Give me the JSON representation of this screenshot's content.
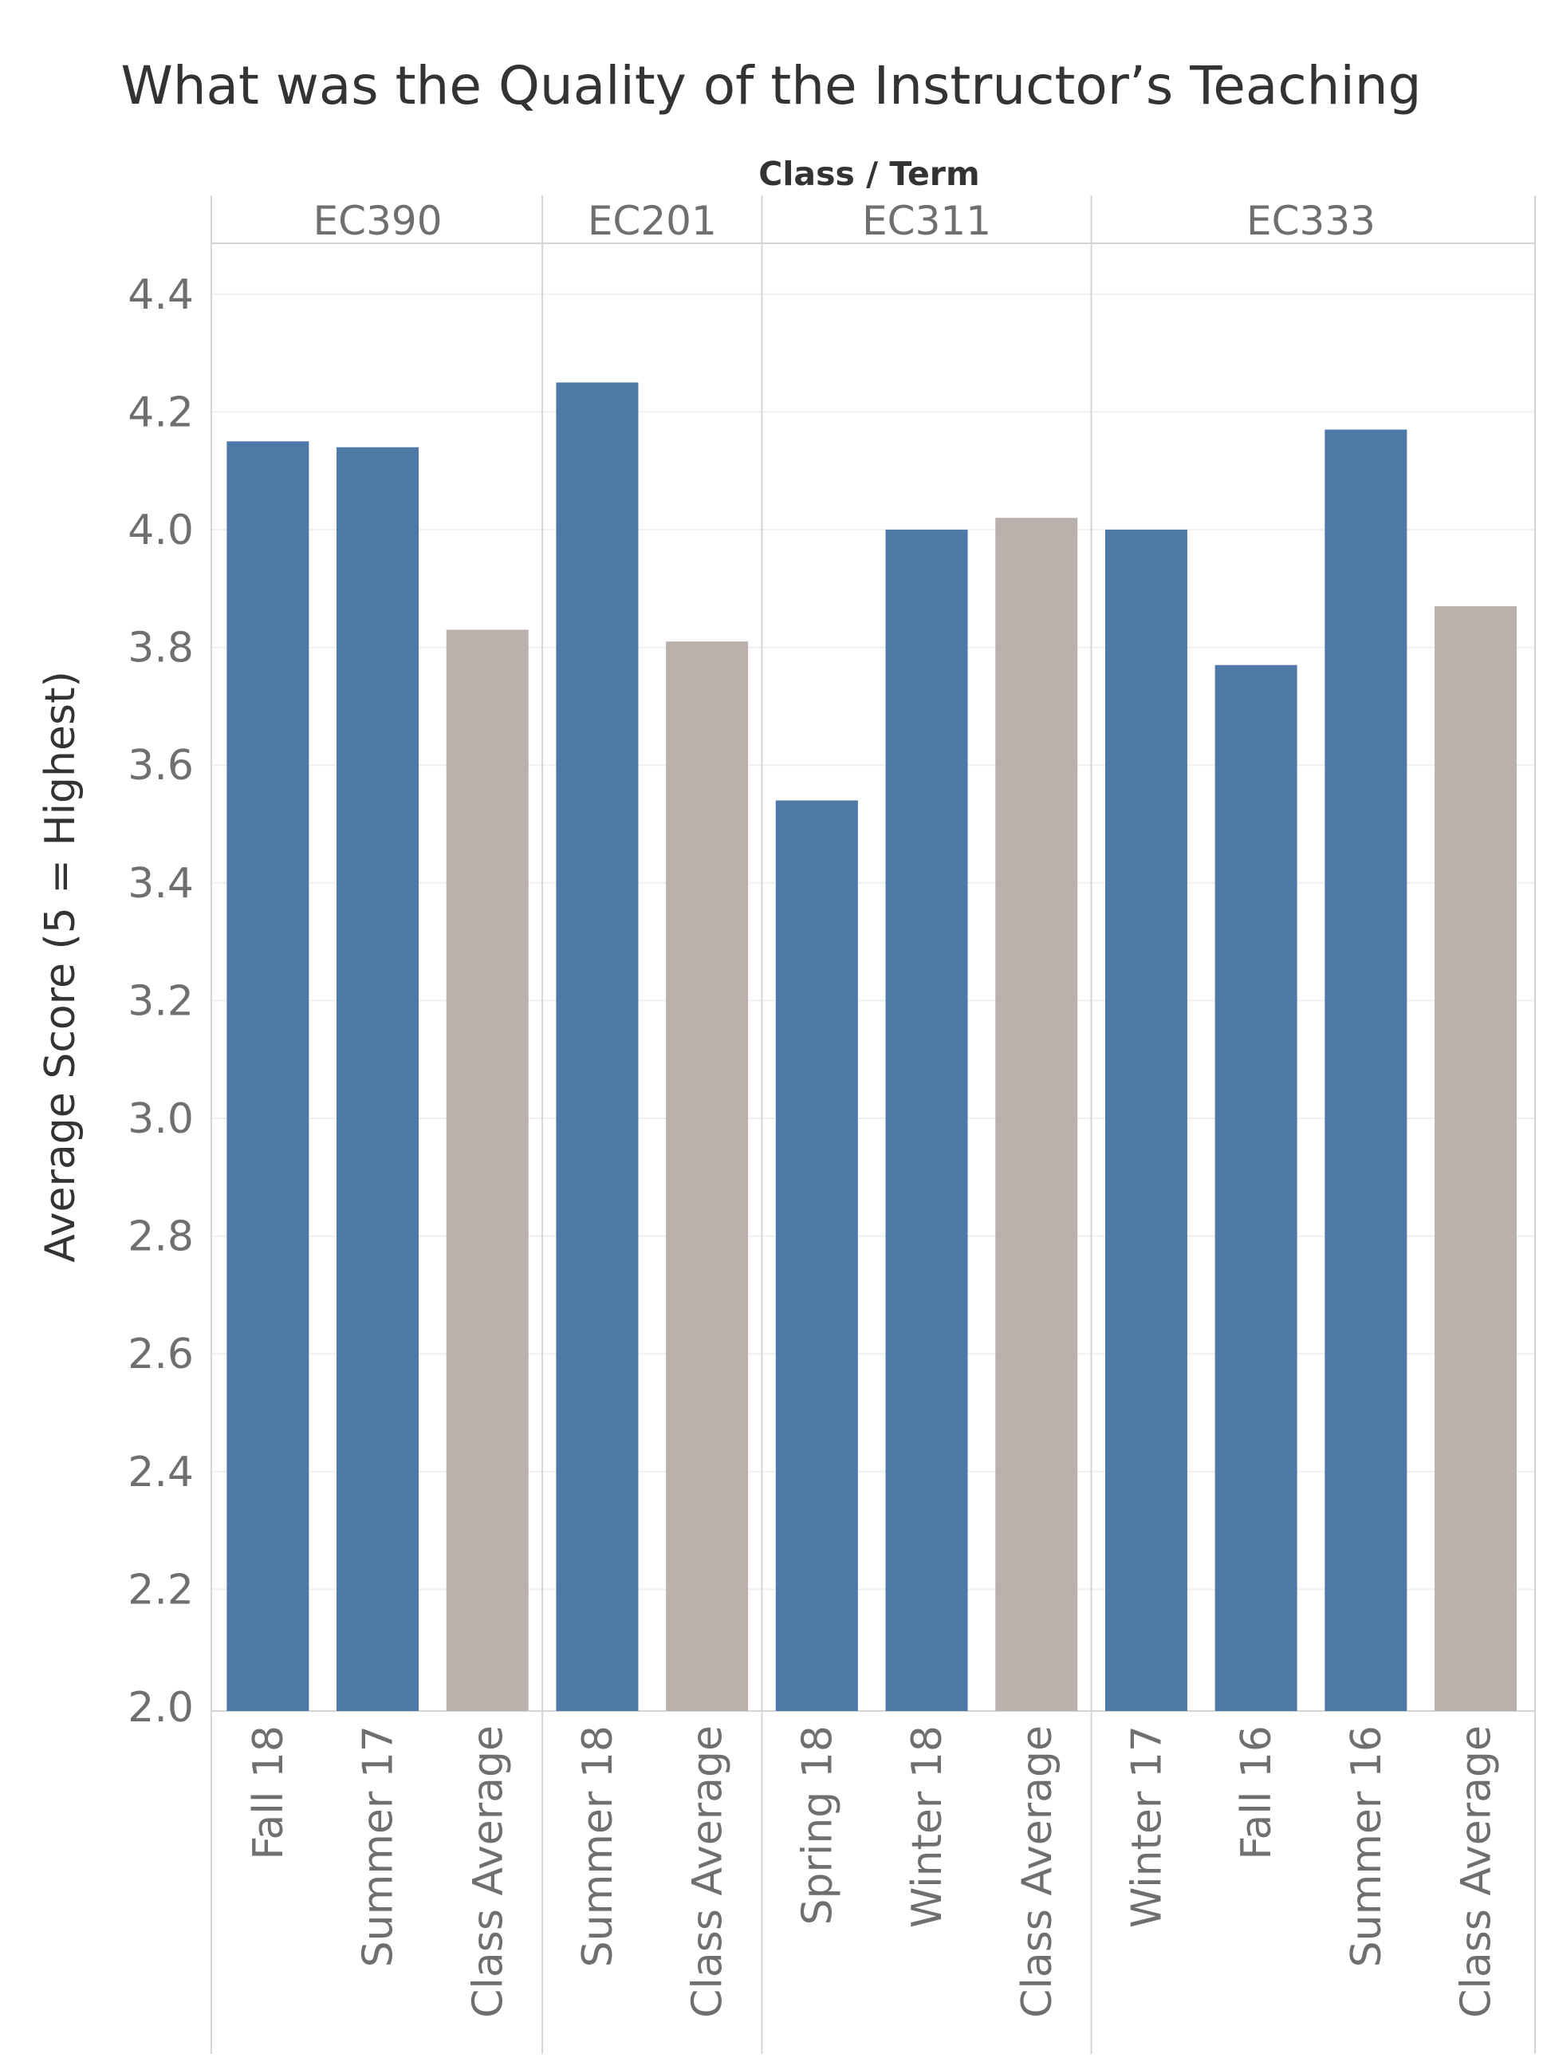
{
  "chart_data": {
    "type": "bar",
    "title": "What was the Quality of the Instructor’s Teaching",
    "column_header_title": "Class / Term",
    "ylabel": "Average Score (5 = Highest)",
    "ylim": [
      2.0,
      4.5
    ],
    "yticks": [
      "2.0",
      "2.2",
      "2.4",
      "2.6",
      "2.8",
      "3.0",
      "3.2",
      "3.4",
      "3.6",
      "3.8",
      "4.0",
      "4.2",
      "4.4"
    ],
    "grid": true,
    "colors": {
      "term": "#4e79a7",
      "class_average": "#bab0ac"
    },
    "groups": [
      {
        "name": "EC390",
        "bars": [
          {
            "label": "Fall 18",
            "value": 4.15,
            "kind": "term"
          },
          {
            "label": "Summer 17",
            "value": 4.14,
            "kind": "term"
          },
          {
            "label": "Class Average",
            "value": 3.83,
            "kind": "class_average"
          }
        ]
      },
      {
        "name": "EC201",
        "bars": [
          {
            "label": "Summer 18",
            "value": 4.25,
            "kind": "term"
          },
          {
            "label": "Class Average",
            "value": 3.81,
            "kind": "class_average"
          }
        ]
      },
      {
        "name": "EC311",
        "bars": [
          {
            "label": "Spring 18",
            "value": 3.54,
            "kind": "term"
          },
          {
            "label": "Winter 18",
            "value": 4.0,
            "kind": "term"
          },
          {
            "label": "Class Average",
            "value": 4.02,
            "kind": "class_average"
          }
        ]
      },
      {
        "name": "EC333",
        "bars": [
          {
            "label": "Winter 17",
            "value": 4.0,
            "kind": "term"
          },
          {
            "label": "Fall 16",
            "value": 3.77,
            "kind": "term"
          },
          {
            "label": "Summer 16",
            "value": 4.17,
            "kind": "term"
          },
          {
            "label": "Class Average",
            "value": 3.87,
            "kind": "class_average"
          }
        ]
      }
    ]
  }
}
